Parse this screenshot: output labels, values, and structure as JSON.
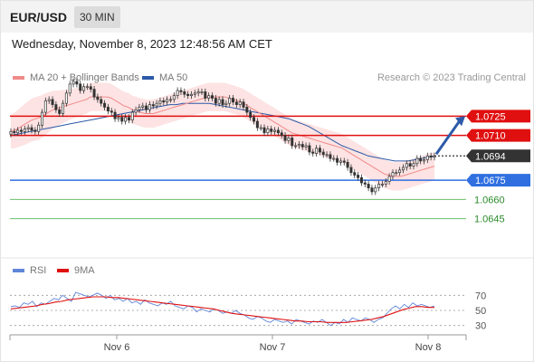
{
  "header": {
    "symbol": "EUR/USD",
    "timeframe": "30 MIN"
  },
  "datetime": "Wednesday, November 8, 2023 12:48:56 AM CET",
  "legend": {
    "ma20": {
      "label": "MA 20 + Bollinger Bands",
      "color": "#f08a8a"
    },
    "ma50": {
      "label": "MA 50",
      "color": "#2d5aa8"
    },
    "rsi": {
      "label": "RSI",
      "color": "#5f86d8"
    },
    "rsi9": {
      "label": "9MA",
      "color": "#e01010"
    }
  },
  "credit": "Research © 2023 Trading Central",
  "chart_data": [
    {
      "type": "candlestick",
      "title": "EUR/USD 30 MIN",
      "x_ticks": [
        "Nov 6",
        "Nov 7",
        "Nov 8"
      ],
      "ylim": [
        1.0625,
        1.0745
      ],
      "last_price": 1.0694,
      "levels": [
        {
          "value": 1.0725,
          "label": "1.0725",
          "kind": "resistance",
          "color": "#e01010"
        },
        {
          "value": 1.071,
          "label": "1.0710",
          "kind": "resistance",
          "color": "#e01010"
        },
        {
          "value": 1.0694,
          "label": "1.0694",
          "kind": "last-price",
          "color": "#333333"
        },
        {
          "value": 1.0675,
          "label": "1.0675",
          "kind": "pivot",
          "color": "#2f6fe0"
        },
        {
          "value": 1.066,
          "label": "1.0660",
          "kind": "support",
          "color": "#2a8a2a"
        },
        {
          "value": 1.0645,
          "label": "1.0645",
          "kind": "support",
          "color": "#2a8a2a"
        }
      ],
      "close": [
        1.0713,
        1.0712,
        1.0714,
        1.0713,
        1.0715,
        1.0716,
        1.0714,
        1.0713,
        1.0718,
        1.0728,
        1.0737,
        1.0738,
        1.0734,
        1.073,
        1.0727,
        1.0735,
        1.0743,
        1.075,
        1.0752,
        1.075,
        1.0745,
        1.0748,
        1.0748,
        1.0746,
        1.074,
        1.0738,
        1.0735,
        1.0732,
        1.0729,
        1.0728,
        1.0723,
        1.0724,
        1.0721,
        1.0724,
        1.0722,
        1.0728,
        1.073,
        1.0732,
        1.0733,
        1.073,
        1.0734,
        1.0733,
        1.0735,
        1.0737,
        1.0736,
        1.0738,
        1.0738,
        1.0741,
        1.0745,
        1.0744,
        1.0742,
        1.0741,
        1.0742,
        1.0743,
        1.0744,
        1.0744,
        1.0739,
        1.0741,
        1.0739,
        1.0735,
        1.0738,
        1.0734,
        1.0735,
        1.0739,
        1.0736,
        1.0734,
        1.0736,
        1.0732,
        1.0728,
        1.0724,
        1.0721,
        1.0716,
        1.0716,
        1.0712,
        1.0715,
        1.0713,
        1.0714,
        1.0712,
        1.071,
        1.0706,
        1.0708,
        1.0702,
        1.0702,
        1.0703,
        1.0701,
        1.0702,
        1.0697,
        1.0696,
        1.07,
        1.0697,
        1.0695,
        1.0695,
        1.0692,
        1.0692,
        1.0689,
        1.069,
        1.0689,
        1.0685,
        1.0681,
        1.0679,
        1.0677,
        1.0673,
        1.0672,
        1.0669,
        1.0666,
        1.0669,
        1.0672,
        1.0672,
        1.0674,
        1.0678,
        1.0681,
        1.0681,
        1.0683,
        1.0685,
        1.0688,
        1.0686,
        1.0688,
        1.0692,
        1.069,
        1.0691,
        1.0694,
        1.0693,
        1.0694
      ],
      "ma20": [
        1.0713,
        1.0714,
        1.0716,
        1.0718,
        1.072,
        1.0722,
        1.0723,
        1.0724,
        1.0726,
        1.0728,
        1.073,
        1.0731,
        1.0732,
        1.0733,
        1.0734,
        1.0735,
        1.0736,
        1.0737,
        1.0738,
        1.074,
        1.074,
        1.074,
        1.074,
        1.074,
        1.0739,
        1.0737,
        1.0735,
        1.0733,
        1.0732,
        1.073,
        1.0729,
        1.0728,
        1.0727,
        1.0727,
        1.0727,
        1.0728,
        1.0729,
        1.073,
        1.0731,
        1.0732,
        1.0733,
        1.0734,
        1.0735,
        1.0736,
        1.0737,
        1.0738,
        1.0739,
        1.074,
        1.074,
        1.074,
        1.074,
        1.074,
        1.0739,
        1.0738,
        1.0737,
        1.0736,
        1.0734,
        1.0732,
        1.073,
        1.0728,
        1.0726,
        1.0724,
        1.0722,
        1.072,
        1.0718,
        1.0716,
        1.0714,
        1.0712,
        1.0711,
        1.071,
        1.0709,
        1.0708,
        1.0707,
        1.0706,
        1.0705,
        1.0704,
        1.0703,
        1.0702,
        1.0701,
        1.07,
        1.0698,
        1.0696,
        1.0694,
        1.0692,
        1.069,
        1.0688,
        1.0686,
        1.0684,
        1.0682,
        1.068,
        1.0679,
        1.0678,
        1.0678,
        1.0678,
        1.0679,
        1.068,
        1.0681,
        1.0682,
        1.0683,
        1.0684,
        1.0685,
        1.0686
      ],
      "ma50": [
        1.071,
        1.0711,
        1.0712,
        1.0713,
        1.0714,
        1.0715,
        1.0716,
        1.0717,
        1.0718,
        1.0719,
        1.072,
        1.0721,
        1.0722,
        1.0723,
        1.0724,
        1.0725,
        1.0726,
        1.0727,
        1.0728,
        1.0729,
        1.073,
        1.0731,
        1.0732,
        1.0733,
        1.0734,
        1.0734,
        1.0735,
        1.0735,
        1.0735,
        1.0735,
        1.0735,
        1.0734,
        1.0733,
        1.0732,
        1.0731,
        1.073,
        1.0729,
        1.0728,
        1.0727,
        1.0726,
        1.0725,
        1.0724,
        1.0723,
        1.0721,
        1.0719,
        1.0717,
        1.0714,
        1.0711,
        1.0708,
        1.0705,
        1.0702,
        1.07,
        1.0698,
        1.0696,
        1.0694,
        1.0693,
        1.0692,
        1.0691,
        1.069,
        1.069,
        1.069,
        1.0691,
        1.0692,
        1.0693,
        1.0694
      ]
    },
    {
      "type": "line",
      "title": "RSI",
      "ylim": [
        20,
        80
      ],
      "y_ticks": [
        70,
        50,
        30
      ],
      "series": [
        {
          "name": "RSI",
          "values": [
            55,
            56,
            54,
            60,
            58,
            62,
            55,
            60,
            58,
            62,
            66,
            64,
            70,
            66,
            62,
            74,
            72,
            70,
            68,
            70,
            73,
            70,
            66,
            70,
            64,
            66,
            62,
            66,
            60,
            62,
            58,
            64,
            60,
            58,
            56,
            60,
            58,
            62,
            56,
            54,
            52,
            56,
            54,
            48,
            52,
            50,
            48,
            52,
            50,
            46,
            48,
            46,
            50,
            46,
            44,
            40,
            38,
            42,
            40,
            36,
            34,
            38,
            36,
            34,
            36,
            32,
            38,
            36,
            34,
            32,
            36,
            34,
            38,
            34,
            30,
            34,
            32,
            38,
            34,
            40,
            38,
            36,
            40,
            38,
            34,
            38,
            40,
            46,
            52,
            56,
            52,
            58,
            54,
            60,
            56,
            58,
            56,
            54,
            56
          ]
        },
        {
          "name": "9MA",
          "values": [
            52,
            53,
            54,
            55,
            56,
            58,
            59,
            61,
            62,
            64,
            65,
            66,
            67,
            68,
            68,
            68,
            67,
            67,
            66,
            65,
            64,
            63,
            62,
            61,
            60,
            59,
            58,
            57,
            56,
            55,
            54,
            53,
            52,
            50,
            48,
            46,
            45,
            44,
            43,
            42,
            41,
            40,
            39,
            38,
            37,
            36,
            36,
            35,
            35,
            35,
            34,
            34,
            34,
            34,
            35,
            36,
            37,
            38,
            40,
            42,
            45,
            48,
            51,
            53,
            55,
            55,
            54,
            54
          ]
        }
      ]
    }
  ]
}
